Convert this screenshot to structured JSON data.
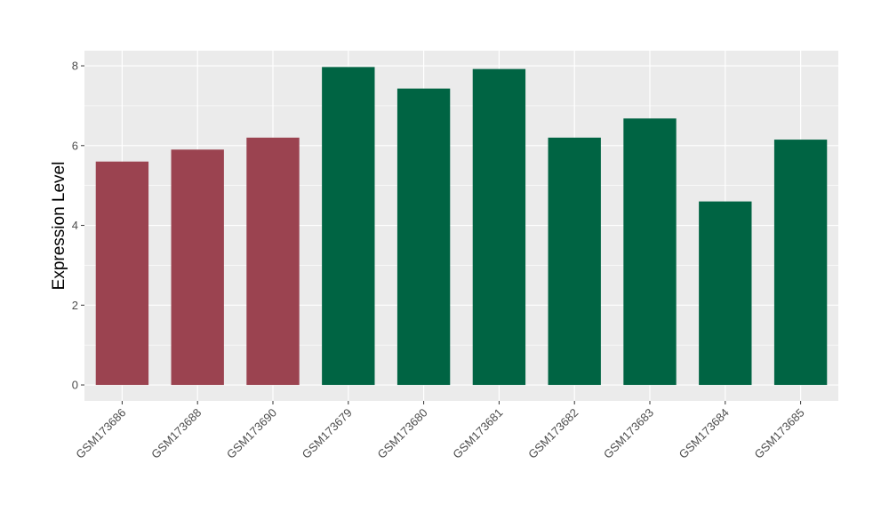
{
  "chart_data": {
    "type": "bar",
    "title": "",
    "xlabel": "",
    "ylabel": "Expression Level",
    "categories": [
      "GSM173686",
      "GSM173688",
      "GSM173690",
      "GSM173679",
      "GSM173680",
      "GSM173681",
      "GSM173682",
      "GSM173683",
      "GSM173684",
      "GSM173685"
    ],
    "values": [
      5.6,
      5.9,
      6.2,
      7.97,
      7.43,
      7.92,
      6.2,
      6.68,
      4.6,
      6.15
    ],
    "bar_colors": [
      "#9b4350",
      "#9b4350",
      "#9b4350",
      "#006443",
      "#006443",
      "#006443",
      "#006443",
      "#006443",
      "#006443",
      "#006443"
    ],
    "ylim": [
      -0.4,
      8.38
    ],
    "y_ticks": [
      0,
      2,
      4,
      6,
      8
    ],
    "grid": true,
    "legend": "none",
    "panel_background": "#ebebeb",
    "grid_color": "#ffffff"
  }
}
